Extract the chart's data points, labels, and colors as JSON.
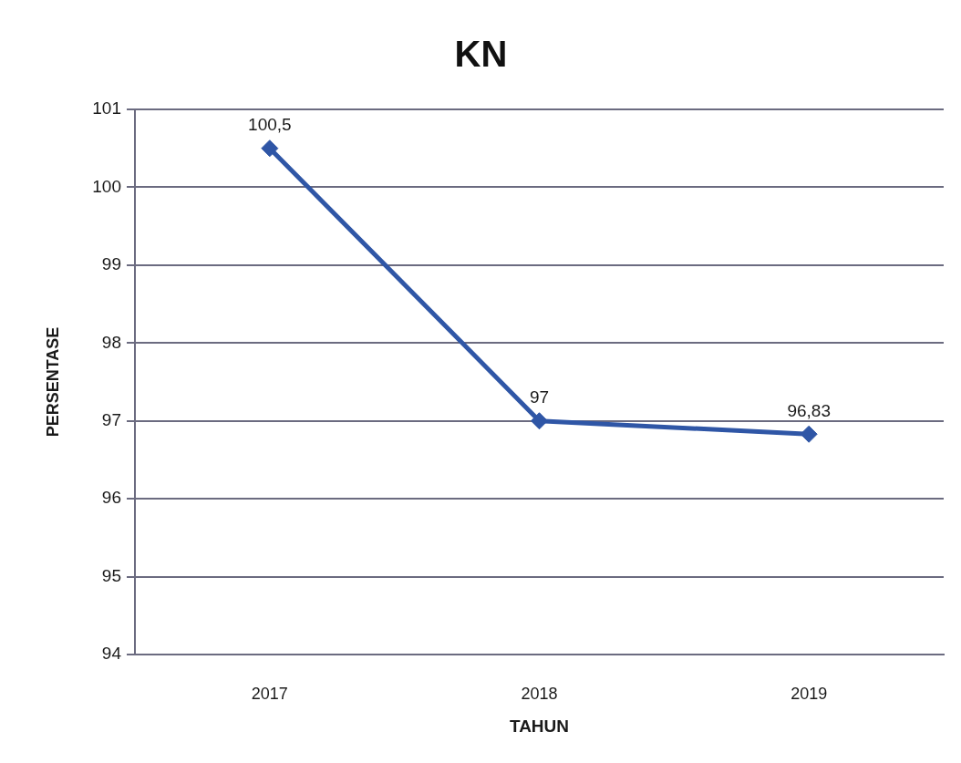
{
  "chart_data": {
    "type": "line",
    "title": "KN",
    "xlabel": "TAHUN",
    "ylabel": "PERSENTASE",
    "categories": [
      "2017",
      "2018",
      "2019"
    ],
    "values": [
      100.5,
      97,
      96.83
    ],
    "value_labels": [
      "100,5",
      "97",
      "96,83"
    ],
    "color": "#2f56a6",
    "ylim": [
      94,
      101
    ],
    "yticks": [
      94,
      95,
      96,
      97,
      98,
      99,
      100,
      101
    ],
    "grid": "y",
    "marker": "diamond",
    "line_style": "solid"
  }
}
